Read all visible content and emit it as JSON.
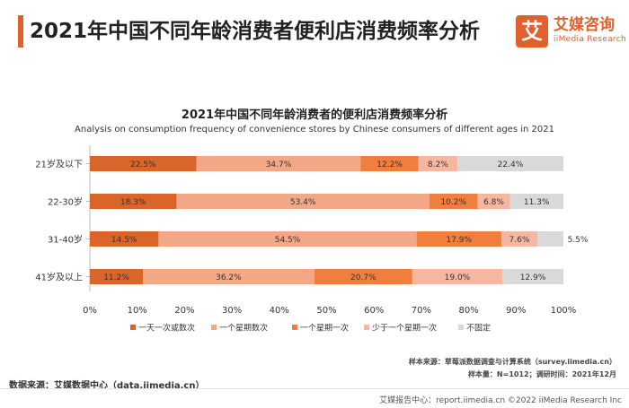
{
  "header": {
    "title": "2021年中国不同年龄消费者便利店消费频率分析"
  },
  "logo": {
    "mark": "艾",
    "name": "艾媒咨询",
    "tagline": "iiMedia Research"
  },
  "notes": {
    "sample_source": "样本来源：草莓派数据调查与计算系统（survey.iimedia.cn）",
    "sample_size": "样本量：N=1012；调研时间：2021年12月",
    "data_source": "数据来源：艾媒数据中心（data.iimedia.cn）",
    "footer": "艾媒报告中心：report.iimedia.cn ©2022 iiMedia Research Inc"
  },
  "chart_data": {
    "type": "bar",
    "orientation": "horizontal",
    "stacked": true,
    "title": "2021年中国不同年龄消费者的便利店消费频率分析",
    "subtitle": "Analysis on consumption frequency of convenience stores by Chinese consumers of different ages in 2021",
    "categories": [
      "21岁及以下",
      "22-30岁",
      "31-40岁",
      "41岁及以上"
    ],
    "series": [
      {
        "name": "一天一次或数次",
        "color": "#d9652b",
        "values": [
          22.5,
          18.3,
          14.5,
          11.2
        ]
      },
      {
        "name": "一个星期数次",
        "color": "#f2a886",
        "values": [
          34.7,
          53.4,
          54.5,
          36.2
        ]
      },
      {
        "name": "一个星期一次",
        "color": "#ef7e3f",
        "values": [
          12.2,
          10.2,
          17.9,
          20.7
        ]
      },
      {
        "name": "少于一个星期一次",
        "color": "#f6b7a0",
        "values": [
          8.2,
          6.8,
          7.6,
          19.0
        ]
      },
      {
        "name": "不固定",
        "color": "#d9d9d9",
        "values": [
          22.4,
          11.3,
          5.5,
          12.9
        ]
      }
    ],
    "value_labels": [
      [
        "22.5%",
        "34.7%",
        "12.2%",
        "8.2%",
        "22.4%"
      ],
      [
        "18.3%",
        "53.4%",
        "10.2%",
        "6.8%",
        "11.3%"
      ],
      [
        "14.5%",
        "54.5%",
        "17.9%",
        "7.6%",
        "5.5%"
      ],
      [
        "11.2%",
        "36.2%",
        "20.7%",
        "19.0%",
        "12.9%"
      ]
    ],
    "x_ticks": [
      "0%",
      "10%",
      "20%",
      "30%",
      "40%",
      "50%",
      "60%",
      "70%",
      "80%",
      "90%",
      "100%"
    ],
    "xlim": [
      0,
      100
    ],
    "grid": false,
    "legend_position": "bottom"
  }
}
